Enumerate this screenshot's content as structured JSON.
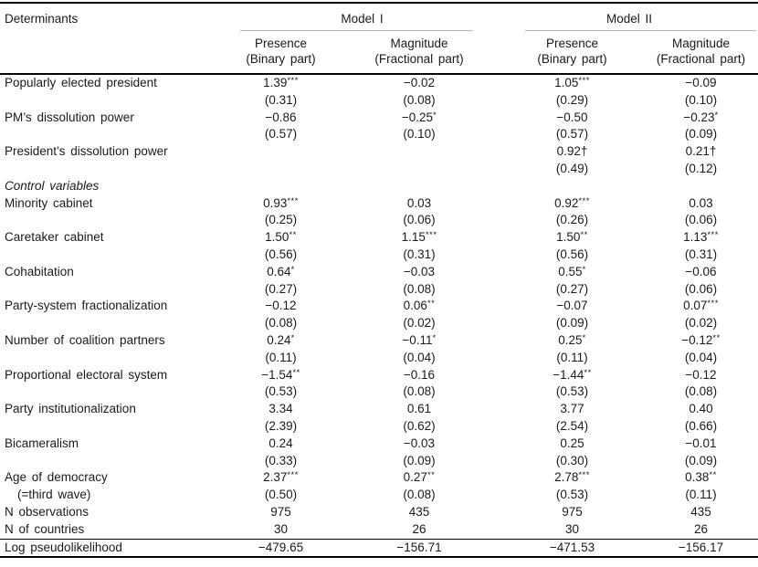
{
  "table": {
    "header": {
      "determinants": "Determinants",
      "model1": "Model I",
      "model2": "Model II",
      "sub": [
        {
          "line1": "Presence",
          "line2": "(Binary part)"
        },
        {
          "line1": "Magnitude",
          "line2": "(Fractional part)"
        },
        {
          "line1": "Presence",
          "line2": "(Binary part)"
        },
        {
          "line1": "Magnitude",
          "line2": "(Fractional part)"
        }
      ]
    },
    "rows": [
      {
        "label": "Popularly elected president",
        "cells": [
          "1.39***",
          "−0.02",
          "1.05***",
          "−0.09"
        ]
      },
      {
        "label": "",
        "cells": [
          "(0.31)",
          "(0.08)",
          "(0.29)",
          "(0.10)"
        ]
      },
      {
        "label": "PM’s dissolution power",
        "cells": [
          "−0.86",
          "−0.25*",
          "−0.50",
          "−0.23*"
        ]
      },
      {
        "label": "",
        "cells": [
          "(0.57)",
          "(0.10)",
          "(0.57)",
          "(0.09)"
        ]
      },
      {
        "label": "President’s dissolution power",
        "cells": [
          "",
          "",
          "0.92†",
          "0.21†"
        ]
      },
      {
        "label": "",
        "cells": [
          "",
          "",
          "(0.49)",
          "(0.12)"
        ]
      },
      {
        "label": "Control variables",
        "italic": true,
        "cells": [
          "",
          "",
          "",
          ""
        ]
      },
      {
        "label": "Minority cabinet",
        "cells": [
          "0.93***",
          "0.03",
          "0.92***",
          "0.03"
        ]
      },
      {
        "label": "",
        "cells": [
          "(0.25)",
          "(0.06)",
          "(0.26)",
          "(0.06)"
        ]
      },
      {
        "label": "Caretaker cabinet",
        "cells": [
          "1.50**",
          "1.15***",
          "1.50**",
          "1.13***"
        ]
      },
      {
        "label": "",
        "cells": [
          "(0.56)",
          "(0.31)",
          "(0.56)",
          "(0.31)"
        ]
      },
      {
        "label": "Cohabitation",
        "cells": [
          "0.64*",
          "−0.03",
          "0.55*",
          "−0.06"
        ]
      },
      {
        "label": "",
        "cells": [
          "(0.27)",
          "(0.08)",
          "(0.27)",
          "(0.06)"
        ]
      },
      {
        "label": "Party-system fractionalization",
        "cells": [
          "−0.12",
          "0.06**",
          "−0.07",
          "0.07***"
        ]
      },
      {
        "label": "",
        "cells": [
          "(0.08)",
          "(0.02)",
          "(0.09)",
          "(0.02)"
        ]
      },
      {
        "label": "Number of coalition partners",
        "cells": [
          "0.24*",
          "−0.11*",
          "0.25*",
          "−0.12**"
        ]
      },
      {
        "label": "",
        "cells": [
          "(0.11)",
          "(0.04)",
          "(0.11)",
          "(0.04)"
        ]
      },
      {
        "label": "Proportional electoral system",
        "cells": [
          "−1.54**",
          "−0.16",
          "−1.44**",
          "−0.12"
        ]
      },
      {
        "label": "",
        "cells": [
          "(0.53)",
          "(0.08)",
          "(0.53)",
          "(0.08)"
        ]
      },
      {
        "label": "Party institutionalization",
        "cells": [
          "3.34",
          "0.61",
          "3.77",
          "0.40"
        ]
      },
      {
        "label": "",
        "cells": [
          "(2.39)",
          "(0.62)",
          "(2.54)",
          "(0.66)"
        ]
      },
      {
        "label": "Bicameralism",
        "cells": [
          "0.24",
          "−0.03",
          "0.25",
          "−0.01"
        ]
      },
      {
        "label": "",
        "cells": [
          "(0.33)",
          "(0.09)",
          "(0.30)",
          "(0.09)"
        ]
      },
      {
        "label": "Age of democracy",
        "cells": [
          "2.37***",
          "0.27**",
          "2.78***",
          "0.38**"
        ]
      },
      {
        "label": "(=third wave)",
        "indent": true,
        "cells": [
          "(0.50)",
          "(0.08)",
          "(0.53)",
          "(0.11)"
        ]
      },
      {
        "label": "N observations",
        "cells": [
          "975",
          "435",
          "975",
          "435"
        ]
      },
      {
        "label": "N of countries",
        "cells": [
          "30",
          "26",
          "30",
          "26"
        ]
      },
      {
        "label": "Log pseudolikelihood",
        "rule_above": true,
        "cells": [
          "−479.65",
          "−156.71",
          "−471.53",
          "−156.17"
        ]
      }
    ]
  }
}
